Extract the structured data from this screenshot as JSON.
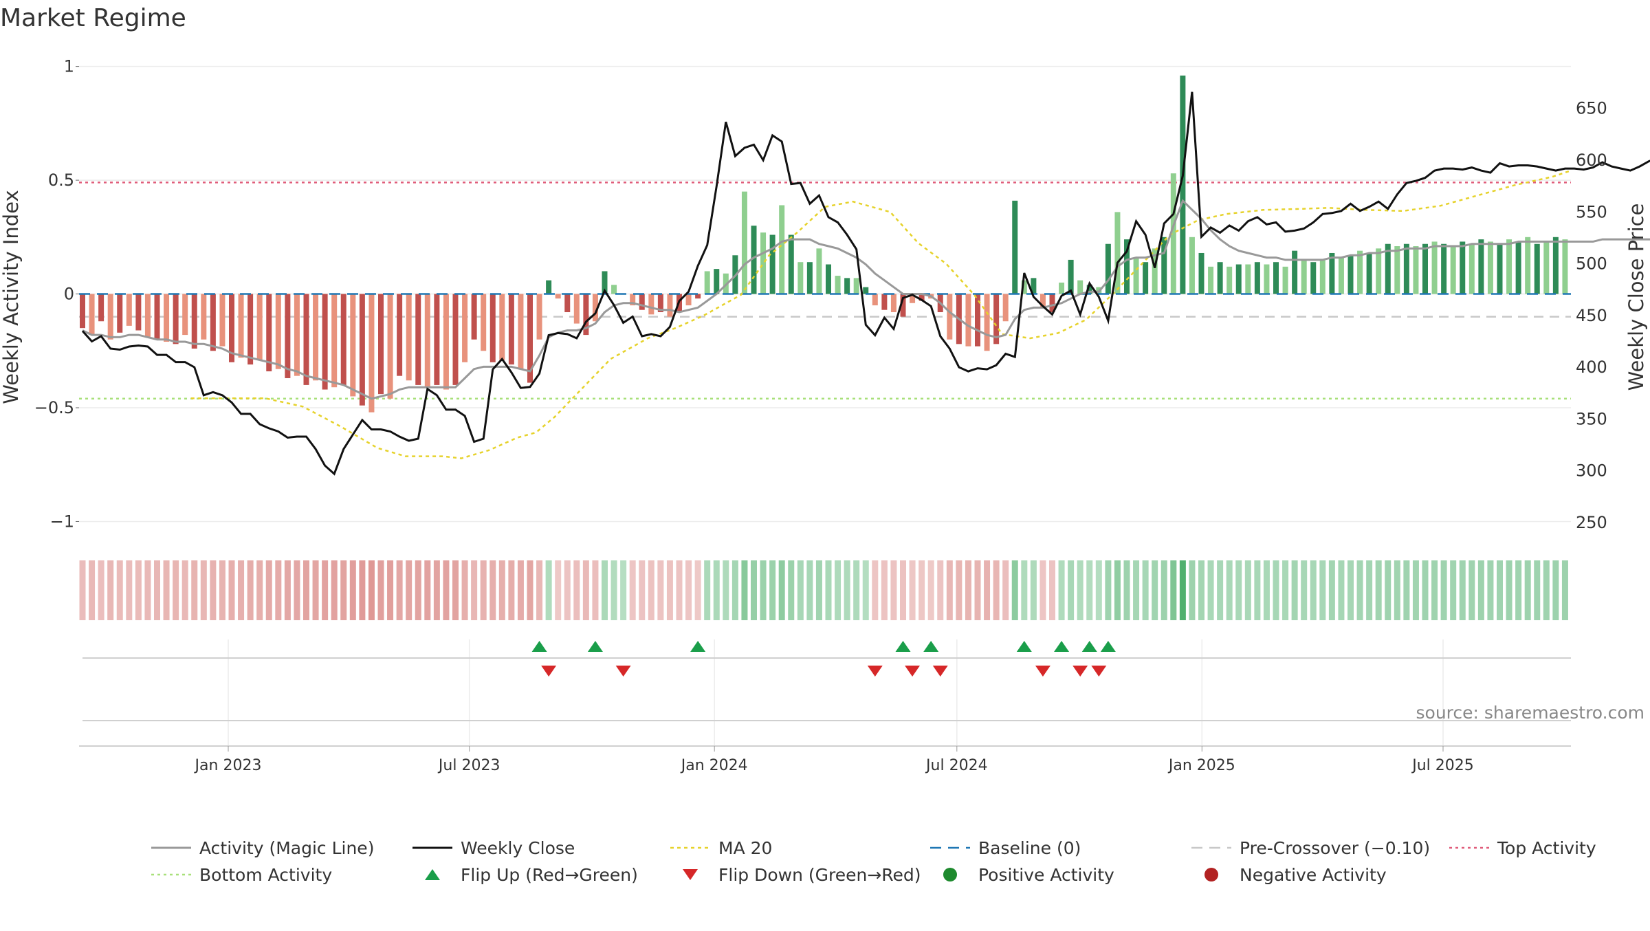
{
  "chart_data": {
    "type": "bar",
    "title": "Market Regime",
    "ylabel_left": "Weekly Activity Index",
    "ylabel_right": "Weekly Close Price",
    "source": "source: sharemaestro.com",
    "left_axis": {
      "ylim": [
        -1.05,
        1.02
      ],
      "ticks": [
        1,
        0.5,
        0,
        -0.5,
        -1
      ],
      "tick_labels": [
        "1",
        "0.5",
        "0",
        "−0.5",
        "−1"
      ]
    },
    "right_axis": {
      "ylim": [
        240,
        695
      ],
      "ticks": [
        650,
        600,
        550,
        500,
        450,
        400,
        350,
        300,
        250
      ],
      "tick_labels": [
        "650",
        "600",
        "550",
        "500",
        "450",
        "400",
        "350",
        "300",
        "250"
      ]
    },
    "x_axis": {
      "start": "2022-09-11",
      "end": "2025-10-05",
      "ticks": [
        {
          "date": "2023-01-01",
          "label": "Jan 2023"
        },
        {
          "date": "2023-07-01",
          "label": "Jul 2023"
        },
        {
          "date": "2024-01-01",
          "label": "Jan 2024"
        },
        {
          "date": "2024-07-01",
          "label": "Jul 2024"
        },
        {
          "date": "2025-01-01",
          "label": "Jan 2025"
        },
        {
          "date": "2025-07-01",
          "label": "Jul 2025"
        }
      ]
    },
    "reference_lines": {
      "top_activity": 0.49,
      "bottom_activity": -0.46,
      "baseline": 0,
      "pre_crossover": -0.1
    },
    "activity_weekly": [
      -0.15,
      -0.18,
      -0.12,
      -0.2,
      -0.17,
      -0.14,
      -0.16,
      -0.19,
      -0.2,
      -0.21,
      -0.22,
      -0.18,
      -0.24,
      -0.2,
      -0.25,
      -0.23,
      -0.3,
      -0.28,
      -0.31,
      -0.29,
      -0.34,
      -0.33,
      -0.37,
      -0.36,
      -0.4,
      -0.38,
      -0.42,
      -0.41,
      -0.4,
      -0.45,
      -0.49,
      -0.52,
      -0.44,
      -0.46,
      -0.36,
      -0.38,
      -0.4,
      -0.41,
      -0.4,
      -0.42,
      -0.4,
      -0.3,
      -0.2,
      -0.25,
      -0.3,
      -0.29,
      -0.31,
      -0.33,
      -0.39,
      -0.2,
      0.06,
      -0.02,
      -0.08,
      -0.13,
      -0.18,
      -0.12,
      0.1,
      0.04,
      0,
      -0.05,
      -0.07,
      -0.09,
      -0.08,
      -0.1,
      -0.08,
      -0.05,
      -0.02,
      0.1,
      0.11,
      0.09,
      0.17,
      0.45,
      0.3,
      0.27,
      0.26,
      0.39,
      0.26,
      0.14,
      0.14,
      0.2,
      0.13,
      0.08,
      0.07,
      0.07,
      0.03,
      -0.05,
      -0.07,
      -0.08,
      -0.1,
      -0.04,
      -0.03,
      -0.02,
      -0.08,
      -0.2,
      -0.22,
      -0.23,
      -0.23,
      -0.25,
      -0.22,
      -0.12,
      0.41,
      0.06,
      0.07,
      -0.06,
      -0.08,
      0.05,
      0.15,
      0.06,
      0.04,
      0.03,
      0.22,
      0.36,
      0.24,
      0.16,
      0.14,
      0.2,
      0.25,
      0.53,
      0.96,
      0.25,
      0.18,
      0.12,
      0.14,
      0.12,
      0.13,
      0.13,
      0.14,
      0.13,
      0.14,
      0.12,
      0.19,
      0.15,
      0.14,
      0.15,
      0.18,
      0.16,
      0.17,
      0.19,
      0.18,
      0.2,
      0.22,
      0.21,
      0.22,
      0.21,
      0.22,
      0.23,
      0.22,
      0.21,
      0.23,
      0.22,
      0.24,
      0.23,
      0.22,
      0.24,
      0.23,
      0.25,
      0.22,
      0.23,
      0.25,
      0.24,
      0.23,
      0.22,
      0.28,
      0.24,
      0.23,
      0.23,
      0.22,
      0.23,
      0.25,
      0.24,
      0.24,
      0.24
    ],
    "magic_line_weekly": [
      -0.16,
      -0.18,
      -0.18,
      -0.19,
      -0.19,
      -0.18,
      -0.18,
      -0.19,
      -0.2,
      -0.2,
      -0.21,
      -0.21,
      -0.22,
      -0.22,
      -0.23,
      -0.24,
      -0.26,
      -0.27,
      -0.28,
      -0.29,
      -0.3,
      -0.31,
      -0.33,
      -0.34,
      -0.36,
      -0.37,
      -0.38,
      -0.39,
      -0.4,
      -0.42,
      -0.44,
      -0.46,
      -0.45,
      -0.44,
      -0.42,
      -0.41,
      -0.41,
      -0.41,
      -0.41,
      -0.41,
      -0.41,
      -0.37,
      -0.33,
      -0.32,
      -0.32,
      -0.32,
      -0.32,
      -0.33,
      -0.34,
      -0.27,
      -0.19,
      -0.17,
      -0.16,
      -0.16,
      -0.15,
      -0.13,
      -0.08,
      -0.05,
      -0.04,
      -0.04,
      -0.05,
      -0.06,
      -0.07,
      -0.07,
      -0.08,
      -0.07,
      -0.06,
      -0.03,
      0,
      0.04,
      0.08,
      0.13,
      0.16,
      0.18,
      0.2,
      0.23,
      0.24,
      0.24,
      0.24,
      0.22,
      0.21,
      0.2,
      0.18,
      0.16,
      0.13,
      0.09,
      0.06,
      0.03,
      0,
      0,
      0,
      -0.01,
      -0.04,
      -0.08,
      -0.11,
      -0.14,
      -0.16,
      -0.18,
      -0.19,
      -0.18,
      -0.11,
      -0.07,
      -0.06,
      -0.06,
      -0.05,
      -0.04,
      -0.02,
      0,
      0.01,
      0.01,
      0.06,
      0.12,
      0.15,
      0.16,
      0.16,
      0.17,
      0.18,
      0.3,
      0.41,
      0.37,
      0.33,
      0.28,
      0.24,
      0.21,
      0.19,
      0.18,
      0.17,
      0.16,
      0.16,
      0.15,
      0.15,
      0.15,
      0.15,
      0.15,
      0.16,
      0.16,
      0.17,
      0.17,
      0.18,
      0.18,
      0.19,
      0.19,
      0.2,
      0.2,
      0.2,
      0.21,
      0.21,
      0.21,
      0.21,
      0.22,
      0.22,
      0.22,
      0.22,
      0.22,
      0.23,
      0.23,
      0.23,
      0.23,
      0.23,
      0.23,
      0.23,
      0.23,
      0.23,
      0.24,
      0.24,
      0.24,
      0.24,
      0.24,
      0.24,
      0.24,
      0.24,
      0.24
    ],
    "weekly_close_dates_note": "weekly series aligned to x_axis.start, 7 days apart",
    "weekly_close": [
      435,
      425,
      430,
      418,
      417,
      420,
      421,
      420,
      412,
      412,
      405,
      405,
      400,
      373,
      376,
      373,
      366,
      355,
      355,
      345,
      341,
      338,
      332,
      333,
      333,
      321,
      305,
      297,
      321,
      335,
      349,
      340,
      340,
      338,
      333,
      329,
      331,
      379,
      373,
      359,
      359,
      353,
      328,
      331,
      398,
      408,
      395,
      380,
      381,
      394,
      431,
      433,
      432,
      428,
      444,
      452,
      474,
      460,
      443,
      449,
      430,
      432,
      430,
      439,
      464,
      473,
      498,
      518,
      575,
      637,
      604,
      612,
      615,
      600,
      624,
      618,
      577,
      578,
      558,
      566,
      545,
      540,
      528,
      514,
      441,
      431,
      448,
      437,
      467,
      470,
      465,
      459,
      430,
      418,
      400,
      396,
      399,
      398,
      402,
      413,
      410,
      491,
      468,
      459,
      451,
      469,
      474,
      451,
      481,
      468,
      445,
      501,
      512,
      541,
      528,
      496,
      539,
      548,
      585,
      666,
      526,
      535,
      530,
      537,
      532,
      541,
      545,
      538,
      540,
      531,
      532,
      534,
      540,
      548,
      549,
      551,
      558,
      551,
      555,
      560,
      553,
      567,
      578,
      580,
      583,
      590,
      592,
      592,
      591,
      593,
      590,
      588,
      597,
      594,
      595,
      595,
      594,
      592,
      590,
      592,
      592,
      591,
      593,
      598,
      594,
      592,
      590,
      594,
      599,
      602,
      596,
      596,
      597,
      599,
      600,
      600,
      602
    ],
    "ma20_weekly": [
      null,
      null,
      null,
      null,
      null,
      null,
      null,
      null,
      null,
      null,
      null,
      null,
      null,
      null,
      null,
      null,
      null,
      null,
      null,
      null,
      null,
      null,
      null,
      null,
      null,
      null,
      null,
      null,
      null,
      null,
      null,
      null,
      null,
      null,
      null,
      null,
      null,
      null,
      null,
      null,
      null,
      null,
      null,
      null,
      null,
      null,
      null,
      null,
      null,
      null,
      null,
      null,
      null,
      null,
      null,
      null,
      null,
      null,
      null,
      null,
      null,
      null,
      null,
      null,
      null,
      null,
      null,
      null,
      null,
      null,
      null,
      null,
      null,
      null,
      null,
      null,
      null,
      null,
      null,
      null,
      null,
      null,
      null,
      null,
      null,
      null,
      null,
      null,
      null,
      null,
      null,
      null,
      null,
      null,
      null,
      null,
      null,
      null,
      null,
      null,
      null,
      null,
      null,
      null,
      null,
      null,
      null,
      null,
      null,
      null,
      null,
      null,
      null,
      null,
      null,
      null,
      null,
      null,
      null,
      null,
      null,
      null,
      null,
      null,
      null,
      null,
      null,
      null,
      null,
      null,
      null,
      null,
      null,
      null,
      null,
      null,
      null,
      null,
      null,
      null,
      null,
      null,
      null,
      null,
      null,
      null,
      null,
      null,
      null,
      null,
      null,
      null,
      null,
      null,
      null,
      null,
      null,
      null,
      null,
      null,
      null,
      null,
      null,
      null,
      null,
      null,
      null,
      null,
      null,
      null,
      null,
      null,
      null,
      null,
      null,
      null,
      null,
      null,
      null
    ],
    "ma20_points": [
      {
        "date": "2022-12-04",
        "value": 370
      },
      {
        "date": "2023-01-29",
        "value": 370
      },
      {
        "date": "2023-02-26",
        "value": 362
      },
      {
        "date": "2023-03-26",
        "value": 343
      },
      {
        "date": "2023-04-23",
        "value": 322
      },
      {
        "date": "2023-05-14",
        "value": 314
      },
      {
        "date": "2023-06-11",
        "value": 314
      },
      {
        "date": "2023-06-25",
        "value": 312
      },
      {
        "date": "2023-07-16",
        "value": 320
      },
      {
        "date": "2023-08-06",
        "value": 332
      },
      {
        "date": "2023-08-20",
        "value": 337
      },
      {
        "date": "2023-09-03",
        "value": 352
      },
      {
        "date": "2023-09-24",
        "value": 380
      },
      {
        "date": "2023-10-15",
        "value": 408
      },
      {
        "date": "2023-11-12",
        "value": 428
      },
      {
        "date": "2023-12-03",
        "value": 438
      },
      {
        "date": "2023-12-24",
        "value": 450
      },
      {
        "date": "2024-01-21",
        "value": 470
      },
      {
        "date": "2024-02-11",
        "value": 508
      },
      {
        "date": "2024-03-03",
        "value": 530
      },
      {
        "date": "2024-03-24",
        "value": 555
      },
      {
        "date": "2024-04-14",
        "value": 560
      },
      {
        "date": "2024-05-12",
        "value": 550
      },
      {
        "date": "2024-06-02",
        "value": 520
      },
      {
        "date": "2024-06-23",
        "value": 500
      },
      {
        "date": "2024-07-14",
        "value": 470
      },
      {
        "date": "2024-08-04",
        "value": 432
      },
      {
        "date": "2024-08-25",
        "value": 428
      },
      {
        "date": "2024-09-15",
        "value": 433
      },
      {
        "date": "2024-10-06",
        "value": 446
      },
      {
        "date": "2024-10-27",
        "value": 472
      },
      {
        "date": "2024-11-17",
        "value": 500
      },
      {
        "date": "2024-12-08",
        "value": 528
      },
      {
        "date": "2024-12-29",
        "value": 542
      },
      {
        "date": "2025-01-19",
        "value": 548
      },
      {
        "date": "2025-02-16",
        "value": 552
      },
      {
        "date": "2025-03-16",
        "value": 553
      },
      {
        "date": "2025-04-06",
        "value": 554
      },
      {
        "date": "2025-05-04",
        "value": 552
      },
      {
        "date": "2025-06-01",
        "value": 551
      },
      {
        "date": "2025-06-29",
        "value": 556
      },
      {
        "date": "2025-07-27",
        "value": 566
      },
      {
        "date": "2025-08-24",
        "value": 576
      },
      {
        "date": "2025-09-21",
        "value": 584
      },
      {
        "date": "2025-10-05",
        "value": 590
      }
    ],
    "flip_up_weeks": [
      49,
      55,
      66,
      88,
      91,
      101,
      105,
      108,
      110
    ],
    "flip_down_weeks": [
      50,
      58,
      85,
      89,
      92,
      103,
      107,
      109
    ],
    "colors": {
      "strong_negative": "#c0504d",
      "weak_negative": "#e8927c",
      "strong_positive": "#2e8b57",
      "weak_positive": "#8fcf8f",
      "weekly_close": "#111111",
      "magic_line": "#999999",
      "ma20": "#e6d22b",
      "baseline": "#1f77b4",
      "pre_crossover": "#c8c8c8",
      "top_activity": "#e05c7a",
      "bottom_activity": "#a8e07a",
      "flip_up": "#1a9e4a",
      "flip_down": "#d62728",
      "positive_activity": "#1e8a2e",
      "negative_activity": "#b22222"
    },
    "legend": [
      {
        "label": "Activity (Magic Line)",
        "style": "solid-gray"
      },
      {
        "label": "Weekly Close",
        "style": "solid-black"
      },
      {
        "label": "MA 20",
        "style": "dotted-yellow"
      },
      {
        "label": "Baseline (0)",
        "style": "dashed-blue"
      },
      {
        "label": "Pre-Crossover (−0.10)",
        "style": "dashed-gray"
      },
      {
        "label": "Top Activity",
        "style": "dotted-pink"
      },
      {
        "label": "Bottom Activity",
        "style": "dotted-lightgreen"
      },
      {
        "label": "Flip Up (Red→Green)",
        "style": "triangle-up-green"
      },
      {
        "label": "Flip Down (Green→Red)",
        "style": "triangle-down-red"
      },
      {
        "label": "Positive Activity",
        "style": "dot-green"
      },
      {
        "label": "Negative Activity",
        "style": "dot-red"
      }
    ]
  }
}
